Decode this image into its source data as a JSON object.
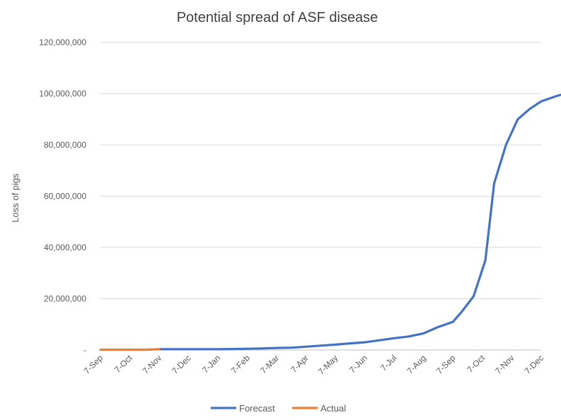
{
  "chart_data": {
    "type": "line",
    "title": "Potential spread of ASF disease",
    "ylabel": "Loss of pigs",
    "xlabel": "",
    "ylim": [
      0,
      120000000
    ],
    "yticks": [
      {
        "value": 0,
        "label": "-"
      },
      {
        "value": 20000000,
        "label": "20,000,000"
      },
      {
        "value": 40000000,
        "label": "40,000,000"
      },
      {
        "value": 60000000,
        "label": "60,000,000"
      },
      {
        "value": 80000000,
        "label": "80,000,000"
      },
      {
        "value": 100000000,
        "label": "100,000,000"
      },
      {
        "value": 120000000,
        "label": "120,000,000"
      }
    ],
    "xticks": [
      "7-Sep",
      "7-Oct",
      "7-Nov",
      "7-Dec",
      "7-Jan",
      "7-Feb",
      "7-Mar",
      "7-Apr",
      "7-May",
      "7-Jun",
      "7-Jul",
      "7-Aug",
      "7-Sep",
      "7-Oct",
      "7-Nov",
      "7-Dec"
    ],
    "grid": true,
    "legend_position": "bottom",
    "series": [
      {
        "name": "Forecast",
        "color": "#4472c4",
        "x": [
          2.0,
          2.5,
          3.0,
          3.5,
          4.0,
          4.5,
          5.0,
          5.5,
          6.0,
          6.5,
          7.0,
          7.5,
          8.0,
          8.5,
          9.0,
          9.5,
          10.0,
          10.5,
          11.0,
          11.5,
          12.0,
          12.3,
          12.7,
          13.1,
          13.4,
          13.8,
          14.2,
          14.6,
          15.0,
          15.5,
          15.8
        ],
        "values": [
          300000,
          300000,
          300000,
          300000,
          300000,
          400000,
          500000,
          600000,
          800000,
          900000,
          1300000,
          1700000,
          2100000,
          2600000,
          3000000,
          3800000,
          4600000,
          5300000,
          6500000,
          9000000,
          11000000,
          15000000,
          21000000,
          35000000,
          65000000,
          80000000,
          90000000,
          94000000,
          97000000,
          99000000,
          100000000
        ]
      },
      {
        "name": "Actual",
        "color": "#ed7d31",
        "x": [
          0,
          0.5,
          1.0,
          1.5,
          2.0
        ],
        "values": [
          100000,
          100000,
          100000,
          100000,
          300000
        ]
      }
    ]
  }
}
